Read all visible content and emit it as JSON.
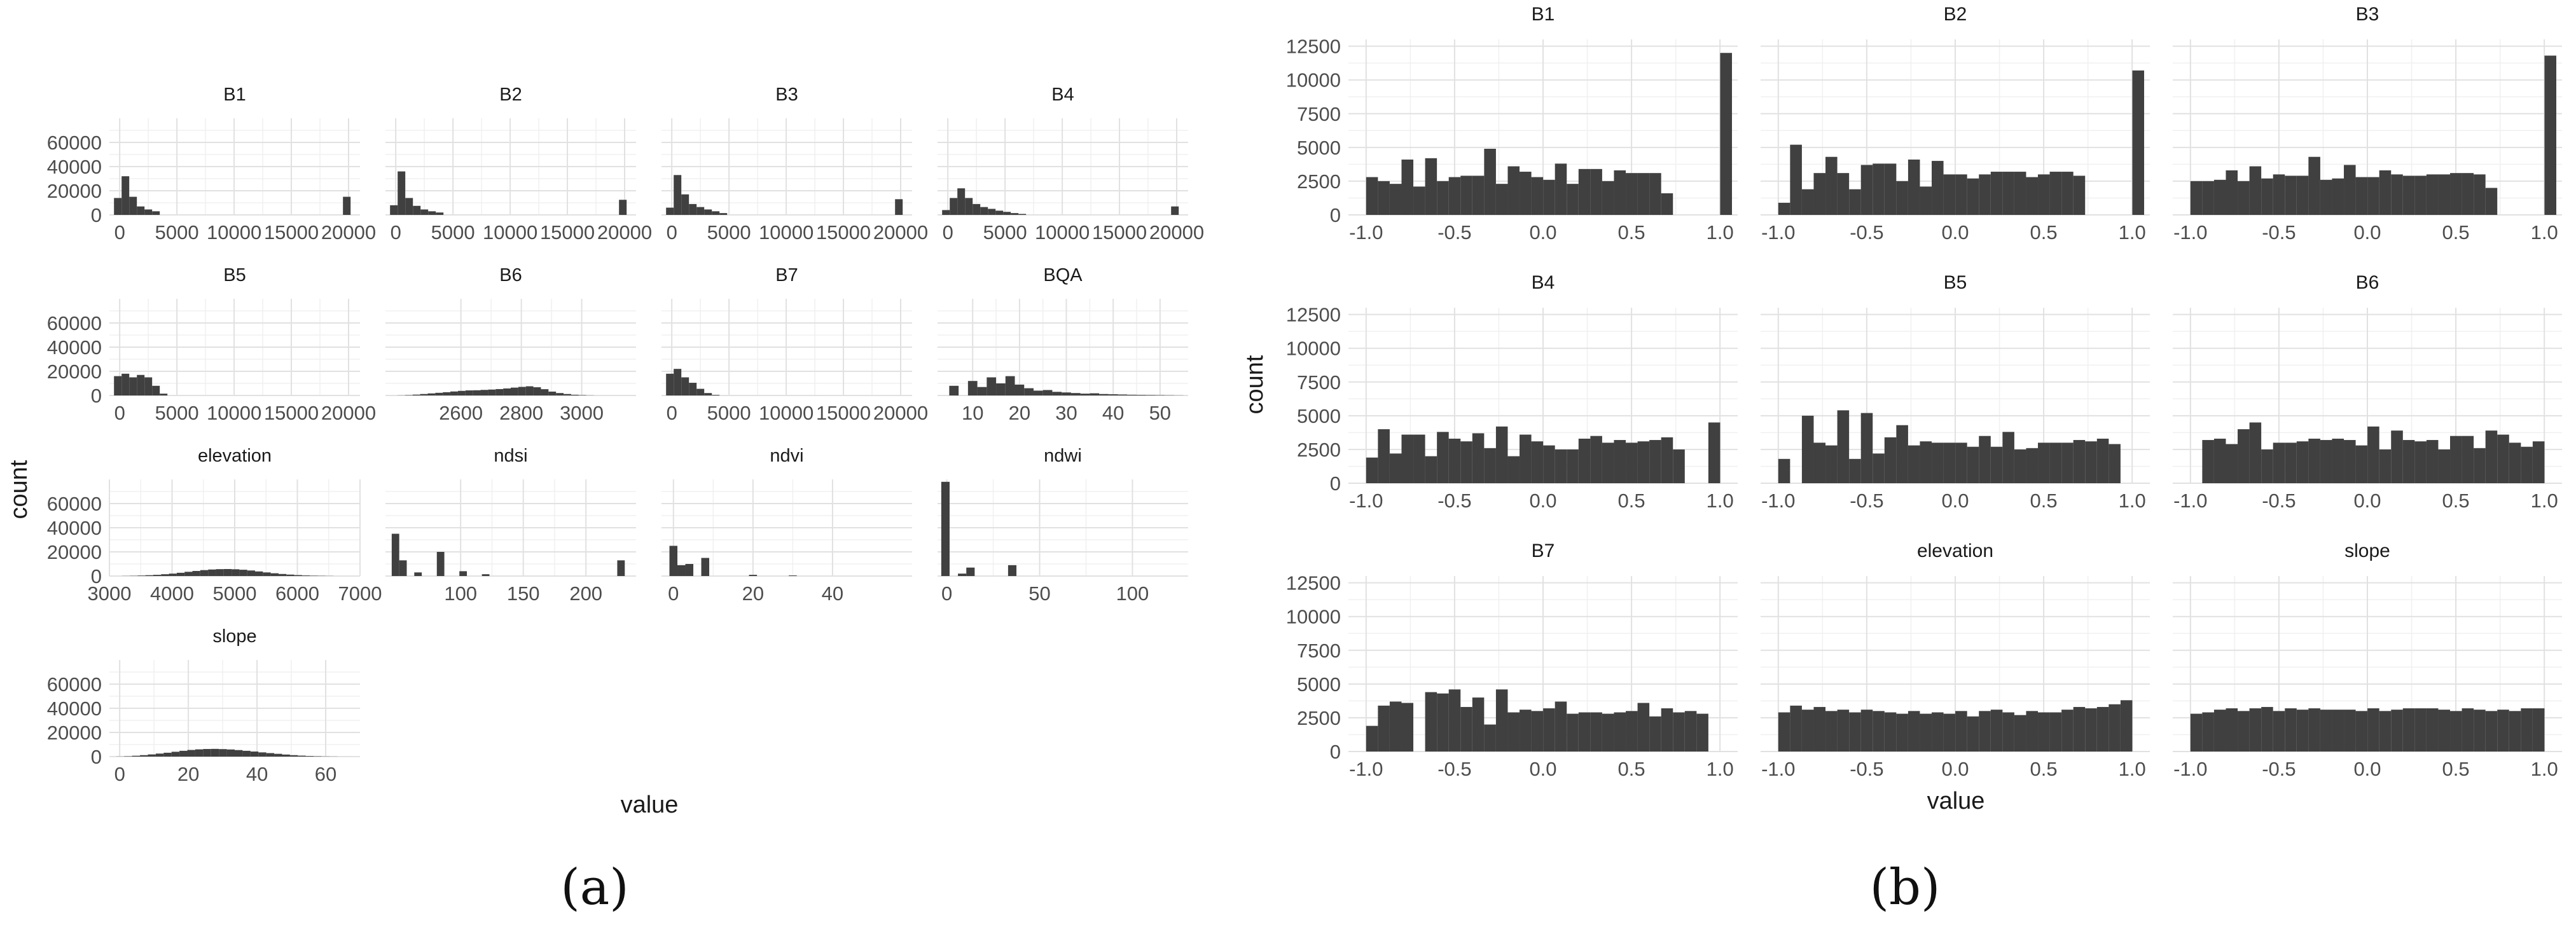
{
  "captions": {
    "a": "(a)",
    "b": "(b)"
  },
  "panel_a": {
    "xlabel": "value",
    "ylabel": "count"
  },
  "panel_b": {
    "xlabel": "value",
    "ylabel": "count"
  },
  "colors": {
    "bar": "#404040",
    "grid_major": "#e1e1e1",
    "grid_minor": "#f0f0f0",
    "text": "#4d4d4d",
    "strip": "#1a1a1a"
  },
  "chart_data": [
    {
      "type": "bar",
      "layout": "facet-grid",
      "facets_ncol": 4,
      "shared_y": true,
      "ylim": [
        0,
        80000
      ],
      "yticks": [
        0,
        20000,
        40000,
        60000
      ],
      "grid": true,
      "facets": [
        {
          "title": "B1",
          "xlim": [
            -900,
            21000
          ],
          "xticks": [
            0,
            5000,
            10000,
            15000,
            20000
          ],
          "bin_start": -500,
          "bin_width": 667,
          "values": [
            14000,
            32000,
            15000,
            7000,
            4500,
            3000,
            0,
            0,
            0,
            0,
            0,
            0,
            0,
            0,
            0,
            0,
            0,
            0,
            0,
            0,
            0,
            0,
            0,
            0,
            0,
            0,
            0,
            0,
            0,
            0,
            15000
          ]
        },
        {
          "title": "B2",
          "xlim": [
            -900,
            21000
          ],
          "xticks": [
            0,
            5000,
            10000,
            15000,
            20000
          ],
          "bin_start": -500,
          "bin_width": 667,
          "values": [
            8000,
            36000,
            14000,
            7500,
            4500,
            3000,
            2000,
            0,
            0,
            0,
            0,
            0,
            0,
            0,
            0,
            0,
            0,
            0,
            0,
            0,
            0,
            0,
            0,
            0,
            0,
            0,
            0,
            0,
            0,
            0,
            12500
          ]
        },
        {
          "title": "B3",
          "xlim": [
            -900,
            21000
          ],
          "xticks": [
            0,
            5000,
            10000,
            15000,
            20000
          ],
          "bin_start": -500,
          "bin_width": 667,
          "values": [
            6000,
            33000,
            17000,
            9000,
            6500,
            4500,
            3000,
            1500,
            0,
            0,
            0,
            0,
            0,
            0,
            0,
            0,
            0,
            0,
            0,
            0,
            0,
            0,
            0,
            0,
            0,
            0,
            0,
            0,
            0,
            0,
            13000
          ]
        },
        {
          "title": "B4",
          "xlim": [
            -900,
            21000
          ],
          "xticks": [
            0,
            5000,
            10000,
            15000,
            20000
          ],
          "bin_start": -500,
          "bin_width": 667,
          "values": [
            4000,
            14000,
            22000,
            14000,
            9000,
            6500,
            5000,
            3500,
            2500,
            1500,
            800,
            0,
            0,
            0,
            0,
            0,
            0,
            0,
            0,
            0,
            0,
            0,
            0,
            0,
            0,
            0,
            0,
            0,
            0,
            0,
            7000
          ]
        },
        {
          "title": "B5",
          "xlim": [
            -900,
            21000
          ],
          "xticks": [
            0,
            5000,
            10000,
            15000,
            20000
          ],
          "bin_start": -500,
          "bin_width": 667,
          "values": [
            16000,
            18000,
            15000,
            17000,
            15000,
            8000,
            1500
          ]
        },
        {
          "title": "B6",
          "xlim": [
            2350,
            3180
          ],
          "xticks": [
            2600,
            2800,
            3000
          ],
          "bin_start": 2390,
          "bin_width": 25,
          "values": [
            100,
            300,
            700,
            1200,
            1700,
            2200,
            2700,
            3300,
            3800,
            4200,
            4300,
            4600,
            4900,
            5300,
            5800,
            6500,
            7100,
            7600,
            6800,
            5200,
            3200,
            2000,
            1200,
            600,
            300,
            100
          ]
        },
        {
          "title": "B7",
          "xlim": [
            -900,
            21000
          ],
          "xticks": [
            0,
            5000,
            10000,
            15000,
            20000
          ],
          "bin_start": -500,
          "bin_width": 667,
          "values": [
            18000,
            22000,
            15000,
            10500,
            5500,
            2000,
            500
          ]
        },
        {
          "title": "BQA",
          "xlim": [
            2.5,
            56
          ],
          "xticks": [
            10,
            20,
            30,
            40,
            50
          ],
          "bin_start": 5,
          "bin_width": 2,
          "values": [
            8000,
            0,
            12000,
            7000,
            15000,
            10000,
            16000,
            9000,
            6000,
            4000,
            4500,
            3000,
            2500,
            2000,
            1500,
            1800,
            1200,
            1000,
            800,
            600,
            500,
            400,
            300,
            200,
            100
          ]
        },
        {
          "title": "elevation",
          "xlim": [
            3000,
            7000
          ],
          "xticks": [
            3000,
            4000,
            5000,
            6000,
            7000
          ],
          "bin_start": 3200,
          "bin_width": 125,
          "values": [
            100,
            200,
            400,
            700,
            1000,
            1500,
            2000,
            2700,
            3500,
            4200,
            4900,
            5400,
            5700,
            5800,
            5600,
            5200,
            4600,
            3800,
            3000,
            2300,
            1700,
            1200,
            800,
            500,
            300,
            200,
            100
          ]
        },
        {
          "title": "ndsi",
          "xlim": [
            40,
            240
          ],
          "xticks": [
            100,
            150,
            200
          ],
          "bin_start": 45,
          "bin_width": 6,
          "values": [
            35000,
            13000,
            0,
            3000,
            0,
            0,
            20000,
            0,
            0,
            4000,
            0,
            0,
            1500,
            0,
            0,
            0,
            0,
            0,
            0,
            0,
            0,
            0,
            0,
            0,
            0,
            0,
            0,
            0,
            0,
            0,
            13000
          ]
        },
        {
          "title": "ndvi",
          "xlim": [
            -3,
            60
          ],
          "xticks": [
            0,
            20,
            40
          ],
          "bin_start": -1,
          "bin_width": 2,
          "values": [
            25000,
            9000,
            10000,
            0,
            15000,
            0,
            0,
            0,
            0,
            0,
            1000,
            0,
            0,
            0,
            0,
            500,
            0,
            0,
            0,
            0,
            0,
            0,
            0,
            0,
            0,
            0,
            0,
            0,
            0,
            0,
            0
          ]
        },
        {
          "title": "ndwi",
          "xlim": [
            -5,
            130
          ],
          "xticks": [
            0,
            50,
            100
          ],
          "bin_start": -3,
          "bin_width": 4.5,
          "values": [
            78000,
            0,
            2000,
            7000,
            0,
            0,
            0,
            0,
            9000
          ]
        },
        {
          "title": "slope",
          "xlim": [
            -3,
            70
          ],
          "xticks": [
            0,
            20,
            40,
            60
          ],
          "bin_start": -1,
          "bin_width": 2.3,
          "values": [
            100,
            300,
            700,
            1200,
            1800,
            2500,
            3200,
            4000,
            4800,
            5500,
            6000,
            6300,
            6400,
            6200,
            5900,
            5400,
            4800,
            4200,
            3500,
            2900,
            2300,
            1700,
            1200,
            800,
            500,
            300,
            150,
            80
          ]
        }
      ]
    },
    {
      "type": "bar",
      "layout": "facet-grid",
      "facets_ncol": 3,
      "shared_y": true,
      "ylim": [
        0,
        13000
      ],
      "yticks": [
        0,
        2500,
        5000,
        7500,
        10000,
        12500
      ],
      "xlim": [
        -1.1,
        1.1
      ],
      "xticks": [
        -1.0,
        -0.5,
        0.0,
        0.5,
        1.0
      ],
      "grid": true,
      "bin_start": -1.0,
      "bin_width": 0.0667,
      "facets": [
        {
          "title": "B1",
          "values": [
            2800,
            2500,
            2300,
            4100,
            2100,
            4200,
            2500,
            2800,
            2900,
            2900,
            4900,
            2300,
            3600,
            3200,
            2800,
            2600,
            3800,
            2300,
            3400,
            3400,
            2500,
            3300,
            3100,
            3100,
            3100,
            1600,
            0,
            0,
            0,
            0,
            12000
          ]
        },
        {
          "title": "B2",
          "values": [
            900,
            5200,
            1900,
            3100,
            4300,
            3100,
            1900,
            3700,
            3800,
            3800,
            2500,
            4100,
            2100,
            4000,
            3000,
            3000,
            2700,
            3000,
            3200,
            3200,
            3200,
            2800,
            3000,
            3200,
            3200,
            2900,
            0,
            0,
            0,
            0,
            10700
          ]
        },
        {
          "title": "B3",
          "values": [
            2500,
            2500,
            2600,
            3300,
            2500,
            3600,
            2700,
            3000,
            2900,
            2900,
            4300,
            2600,
            2700,
            3700,
            2800,
            2800,
            3300,
            3000,
            2900,
            2900,
            3000,
            3000,
            3100,
            3100,
            3000,
            2000,
            0,
            0,
            0,
            0,
            11800
          ]
        },
        {
          "title": "B4",
          "values": [
            1900,
            4000,
            2200,
            3600,
            3600,
            2000,
            3800,
            3300,
            3100,
            3700,
            2600,
            4200,
            2000,
            3600,
            3100,
            2800,
            2500,
            2500,
            3300,
            3500,
            3000,
            3200,
            3000,
            3100,
            3200,
            3400,
            2500,
            0,
            0,
            4500
          ]
        },
        {
          "title": "B5",
          "values": [
            1800,
            0,
            5000,
            3000,
            2800,
            5400,
            1800,
            5200,
            2200,
            3400,
            4300,
            2800,
            3100,
            3000,
            3000,
            3000,
            2700,
            3500,
            2700,
            3800,
            2500,
            2600,
            3000,
            3000,
            3000,
            3200,
            3100,
            3300,
            2900
          ]
        },
        {
          "title": "B6",
          "values": [
            0,
            3200,
            3300,
            2900,
            4000,
            4500,
            2500,
            3000,
            3000,
            3100,
            3300,
            3200,
            3300,
            3200,
            2800,
            4200,
            2500,
            3900,
            3200,
            3100,
            3200,
            2500,
            3500,
            3500,
            2600,
            3900,
            3600,
            3000,
            2700,
            3100
          ]
        },
        {
          "title": "B7",
          "values": [
            1900,
            3400,
            3700,
            3600,
            0,
            4400,
            4300,
            4600,
            3300,
            4000,
            2000,
            4600,
            2900,
            3100,
            3000,
            3200,
            3700,
            2800,
            2900,
            2900,
            2800,
            2900,
            3000,
            3600,
            2600,
            3200,
            2900,
            3000,
            2800
          ]
        },
        {
          "title": "elevation",
          "values": [
            2900,
            3400,
            3100,
            3300,
            3000,
            3100,
            2900,
            3100,
            3000,
            2900,
            2800,
            3000,
            2800,
            2900,
            2800,
            3000,
            2600,
            3000,
            3100,
            2900,
            2700,
            3000,
            2900,
            2900,
            3100,
            3300,
            3200,
            3300,
            3500,
            3800
          ]
        },
        {
          "title": "slope",
          "values": [
            2800,
            2900,
            3100,
            3200,
            3000,
            3200,
            3300,
            3000,
            3200,
            3100,
            3200,
            3100,
            3100,
            3100,
            3000,
            3200,
            3000,
            3100,
            3200,
            3200,
            3200,
            3100,
            3000,
            3200,
            3100,
            3000,
            3100,
            3000,
            3200,
            3200
          ]
        }
      ]
    }
  ]
}
